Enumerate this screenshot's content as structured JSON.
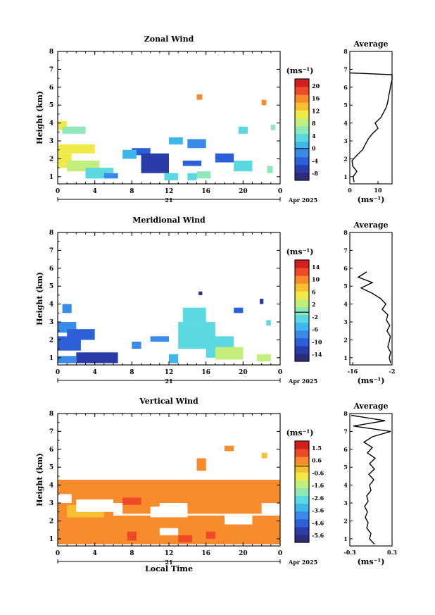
{
  "chart_data": [
    {
      "type": "heatmap",
      "title": "Zonal Wind",
      "ylabel": "Height (km)",
      "ylim": [
        0.6,
        8
      ],
      "yticks": [
        "1",
        "2",
        "3",
        "4",
        "5",
        "6",
        "7",
        "8"
      ],
      "xlim": [
        0,
        24
      ],
      "xticks": [
        "0",
        "4",
        "8",
        "12",
        "16",
        "20",
        "0"
      ],
      "date_day": "21",
      "date_month": "Apr 2025",
      "colorbar": {
        "unit": "(ms⁻¹)",
        "ticks": [
          "20",
          "16",
          "12",
          "8",
          "4",
          "0",
          "-4",
          "-8"
        ],
        "min": -10,
        "max": 22,
        "colors": [
          "#2c2c7a",
          "#2a3ca8",
          "#2c5fd8",
          "#3a8ae8",
          "#3fb6ec",
          "#5cd8e0",
          "#8ee8b8",
          "#c4ee7c",
          "#f0ea48",
          "#f8c030",
          "#f88c2c",
          "#ee4a2a",
          "#d22020"
        ]
      },
      "patches": [
        {
          "t0": 0,
          "t1": 1,
          "z0": 3.6,
          "z1": 4.1,
          "v": 10
        },
        {
          "t0": 0.5,
          "t1": 3,
          "z0": 3.4,
          "z1": 3.8,
          "v": 6
        },
        {
          "t0": 0,
          "t1": 4,
          "z0": 2.3,
          "z1": 2.8,
          "v": 10
        },
        {
          "t0": 0,
          "t1": 1.5,
          "z0": 1.5,
          "z1": 2.3,
          "v": 12
        },
        {
          "t0": 1,
          "t1": 4.5,
          "z0": 1.3,
          "z1": 1.9,
          "v": 8
        },
        {
          "t0": 3,
          "t1": 6,
          "z0": 0.9,
          "z1": 1.5,
          "v": 4
        },
        {
          "t0": 5,
          "t1": 6.5,
          "z0": 0.9,
          "z1": 1.2,
          "v": -2
        },
        {
          "t0": 8,
          "t1": 10,
          "z0": 2.2,
          "z1": 2.6,
          "v": -4
        },
        {
          "t0": 9,
          "t1": 12,
          "z0": 1.2,
          "z1": 2.3,
          "v": -6
        },
        {
          "t0": 7,
          "t1": 8.5,
          "z0": 2.0,
          "z1": 2.5,
          "v": 2
        },
        {
          "t0": 11.5,
          "t1": 13,
          "z0": 0.8,
          "z1": 1.2,
          "v": 3
        },
        {
          "t0": 13.5,
          "t1": 15.5,
          "z0": 1.6,
          "z1": 1.9,
          "v": -3
        },
        {
          "t0": 14,
          "t1": 15,
          "z0": 0.8,
          "z1": 1.2,
          "v": 3
        },
        {
          "t0": 15,
          "t1": 16.5,
          "z0": 0.9,
          "z1": 1.3,
          "v": 6
        },
        {
          "t0": 17,
          "t1": 19,
          "z0": 1.8,
          "z1": 2.3,
          "v": -5
        },
        {
          "t0": 19,
          "t1": 21,
          "z0": 1.3,
          "z1": 1.9,
          "v": 4
        },
        {
          "t0": 14,
          "t1": 16,
          "z0": 2.6,
          "z1": 3.1,
          "v": -2
        },
        {
          "t0": 12,
          "t1": 13.5,
          "z0": 2.8,
          "z1": 3.2,
          "v": 1
        },
        {
          "t0": 19.5,
          "t1": 20.5,
          "z0": 3.4,
          "z1": 3.8,
          "v": 3
        },
        {
          "t0": 15,
          "t1": 15.6,
          "z0": 5.3,
          "z1": 5.6,
          "v": 16
        },
        {
          "t0": 22,
          "t1": 22.5,
          "z0": 5.0,
          "z1": 5.3,
          "v": 15
        },
        {
          "t0": 23,
          "t1": 23.5,
          "z0": 3.6,
          "z1": 3.9,
          "v": 7
        },
        {
          "t0": 22.6,
          "t1": 23.2,
          "z0": 1.2,
          "z1": 1.6,
          "v": 6
        }
      ],
      "profile": {
        "xlim": [
          0,
          15
        ],
        "xticks": [
          "0",
          "10"
        ],
        "xtick_vals": [
          0,
          10
        ],
        "z": [
          0.7,
          1.0,
          1.3,
          1.6,
          1.9,
          2.2,
          2.5,
          2.8,
          3.1,
          3.4,
          3.7,
          4.0,
          4.3,
          4.6,
          4.9,
          5.2,
          5.5,
          5.8,
          6.1,
          6.4,
          6.7,
          6.8
        ],
        "v": [
          1.5,
          1.2,
          2.5,
          1.0,
          0.8,
          2.5,
          4.5,
          5.5,
          6.5,
          8.0,
          10.0,
          9.0,
          11.0,
          12.0,
          13.0,
          13.5,
          13.8,
          14.2,
          14.5,
          15.0,
          15.0,
          0.0
        ]
      },
      "prof_xlabel": "(ms⁻¹)"
    },
    {
      "type": "heatmap",
      "title": "Meridional Wind",
      "ylabel": "Height (km)",
      "ylim": [
        0.6,
        8
      ],
      "yticks": [
        "1",
        "2",
        "3",
        "4",
        "5",
        "6",
        "7",
        "8"
      ],
      "xlim": [
        0,
        24
      ],
      "xticks": [
        "0",
        "4",
        "8",
        "12",
        "16",
        "20",
        "0"
      ],
      "date_day": "21",
      "date_month": "Apr 2025",
      "colorbar": {
        "unit": "(ms⁻¹)",
        "ticks": [
          "14",
          "10",
          "6",
          "2",
          "-2",
          "-6",
          "-10",
          "-14"
        ],
        "min": -16,
        "max": 17,
        "colors": [
          "#2c2c7a",
          "#2a3ca8",
          "#2c5fd8",
          "#3a8ae8",
          "#3fb6ec",
          "#5cd8e0",
          "#8ee8b8",
          "#c4ee7c",
          "#f0ea48",
          "#f8c030",
          "#f88c2c",
          "#ee4a2a",
          "#d22020"
        ]
      },
      "patches": [
        {
          "t0": 0.5,
          "t1": 1.5,
          "z0": 3.5,
          "z1": 4.0,
          "v": -6
        },
        {
          "t0": 0,
          "t1": 2,
          "z0": 2.4,
          "z1": 3.0,
          "v": -8
        },
        {
          "t0": 1,
          "t1": 4,
          "z0": 2.0,
          "z1": 2.6,
          "v": -10
        },
        {
          "t0": 0,
          "t1": 2.5,
          "z0": 1.4,
          "z1": 2.2,
          "v": -10
        },
        {
          "t0": 2,
          "t1": 6.5,
          "z0": 0.7,
          "z1": 1.3,
          "v": -12
        },
        {
          "t0": 0,
          "t1": 2,
          "z0": 0.7,
          "z1": 1.1,
          "v": -6
        },
        {
          "t0": 8,
          "t1": 9,
          "z0": 1.5,
          "z1": 1.9,
          "v": -6
        },
        {
          "t0": 10,
          "t1": 12,
          "z0": 1.9,
          "z1": 2.2,
          "v": -8
        },
        {
          "t0": 13,
          "t1": 17,
          "z0": 1.5,
          "z1": 3.0,
          "v": -3
        },
        {
          "t0": 13.5,
          "t1": 16,
          "z0": 3.0,
          "z1": 3.8,
          "v": -2
        },
        {
          "t0": 16,
          "t1": 19,
          "z0": 1.0,
          "z1": 2.2,
          "v": -1
        },
        {
          "t0": 17,
          "t1": 20,
          "z0": 0.9,
          "z1": 1.6,
          "v": 2
        },
        {
          "t0": 12,
          "t1": 13,
          "z0": 0.7,
          "z1": 1.2,
          "v": -4
        },
        {
          "t0": 21.5,
          "t1": 23,
          "z0": 0.8,
          "z1": 1.2,
          "v": 3
        },
        {
          "t0": 19,
          "t1": 20,
          "z0": 3.5,
          "z1": 3.8,
          "v": -10
        },
        {
          "t0": 15.2,
          "t1": 15.6,
          "z0": 4.5,
          "z1": 4.7,
          "v": -14
        },
        {
          "t0": 21.8,
          "t1": 22.2,
          "z0": 4.0,
          "z1": 4.3,
          "v": -12
        },
        {
          "t0": 22.5,
          "t1": 23,
          "z0": 2.8,
          "z1": 3.1,
          "v": -2
        }
      ],
      "profile": {
        "xlim": [
          -17,
          -2
        ],
        "xticks": [
          "-16",
          "-2"
        ],
        "xtick_vals": [
          -16,
          -2
        ],
        "z": [
          0.7,
          1.0,
          1.3,
          1.6,
          1.9,
          2.2,
          2.5,
          2.8,
          3.1,
          3.4,
          3.7,
          4.0,
          4.3,
          4.6,
          4.9,
          5.2,
          5.5,
          5.8
        ],
        "v": [
          -2.5,
          -3.0,
          -2.5,
          -3.5,
          -3.0,
          -2.6,
          -3.8,
          -2.8,
          -4.0,
          -3.5,
          -5.5,
          -4.2,
          -6.0,
          -9.0,
          -13.0,
          -9.0,
          -14.0,
          -11.0
        ]
      },
      "prof_xlabel": "(ms⁻¹)"
    },
    {
      "type": "heatmap",
      "title": "Vertical Wind",
      "ylabel": "Height (km)",
      "ylim": [
        0.6,
        8
      ],
      "yticks": [
        "1",
        "2",
        "3",
        "4",
        "5",
        "6",
        "7",
        "8"
      ],
      "xlim": [
        0,
        24
      ],
      "xticks": [
        "0",
        "4",
        "8",
        "12",
        "16",
        "20",
        "0"
      ],
      "date_day": "21",
      "date_month": "Apr 2025",
      "xlabel": "Local Time",
      "colorbar": {
        "unit": "(ms⁻¹)",
        "ticks": [
          "1.5",
          "0.6",
          "-0.6",
          "-1.6",
          "-2.6",
          "-3.6",
          "-4.6",
          "-5.6"
        ],
        "min": -6.1,
        "max": 2.0,
        "colors": [
          "#2c2c7a",
          "#2a3ca8",
          "#2c5fd8",
          "#3a8ae8",
          "#3fb6ec",
          "#5cd8e0",
          "#8ee8b8",
          "#c4ee7c",
          "#f0ea48",
          "#f8c030",
          "#f88c2c",
          "#ee4a2a",
          "#d22020"
        ]
      },
      "patches": [
        {
          "t0": 0,
          "t1": 24,
          "z0": 3.0,
          "z1": 4.3,
          "v": 0.4
        },
        {
          "t0": 0,
          "t1": 6,
          "z0": 0.7,
          "z1": 3.2,
          "v": 0.2
        },
        {
          "t0": 6,
          "t1": 24,
          "z0": 0.7,
          "z1": 2.3,
          "v": 0.3
        },
        {
          "t0": 1,
          "t1": 5,
          "z0": 2.2,
          "z1": 2.9,
          "v": 0.1
        },
        {
          "t0": 7,
          "t1": 11,
          "z0": 2.4,
          "z1": 3.1,
          "v": 0.6
        },
        {
          "t0": 14,
          "t1": 22,
          "z0": 2.4,
          "z1": 3.4,
          "v": 0.5
        },
        {
          "t0": 7.5,
          "t1": 8.5,
          "z0": 0.9,
          "z1": 1.4,
          "v": 1.0
        },
        {
          "t0": 13,
          "t1": 14.5,
          "z0": 0.8,
          "z1": 1.2,
          "v": 1.3
        },
        {
          "t0": 16,
          "t1": 17,
          "z0": 1.0,
          "z1": 1.4,
          "v": 1.1
        },
        {
          "t0": 18,
          "t1": 19,
          "z0": 5.9,
          "z1": 6.2,
          "v": 0.4
        },
        {
          "t0": 22,
          "t1": 22.6,
          "z0": 5.5,
          "z1": 5.8,
          "v": 0.1
        },
        {
          "t0": 15,
          "t1": 16,
          "z0": 4.8,
          "z1": 5.5,
          "v": 0.3
        },
        {
          "t0": 7,
          "t1": 9,
          "z0": 2.9,
          "z1": 3.3,
          "v": 0.9
        }
      ],
      "gaps": [
        {
          "t0": 2,
          "t1": 6,
          "z0": 2.5,
          "z1": 3.2
        },
        {
          "t0": 10,
          "t1": 14,
          "z0": 2.2,
          "z1": 2.8
        },
        {
          "t0": 18,
          "t1": 21,
          "z0": 1.8,
          "z1": 2.4
        },
        {
          "t0": 0,
          "t1": 1.5,
          "z0": 3.0,
          "z1": 3.5
        },
        {
          "t0": 11,
          "t1": 13,
          "z0": 1.2,
          "z1": 1.6
        }
      ],
      "profile": {
        "xlim": [
          -0.3,
          0.3
        ],
        "xticks": [
          "-0.3",
          "0.3"
        ],
        "xtick_vals": [
          -0.3,
          0.3
        ],
        "z": [
          0.7,
          1.0,
          1.3,
          1.6,
          1.9,
          2.2,
          2.5,
          2.8,
          3.1,
          3.4,
          3.7,
          4.0,
          4.3,
          4.6,
          4.9,
          5.2,
          5.5,
          5.8,
          6.1,
          6.4,
          6.7,
          7.0,
          7.3,
          7.6,
          7.9
        ],
        "v": [
          0.05,
          -0.02,
          0.0,
          -0.06,
          -0.04,
          -0.08,
          -0.05,
          -0.09,
          -0.04,
          -0.06,
          0.0,
          -0.02,
          0.04,
          -0.03,
          0.05,
          -0.02,
          0.06,
          -0.05,
          0.02,
          -0.1,
          0.02,
          0.28,
          -0.25,
          0.2,
          -0.28
        ]
      },
      "prof_xlabel": "(ms⁻¹)"
    }
  ],
  "profile_title": "Average"
}
